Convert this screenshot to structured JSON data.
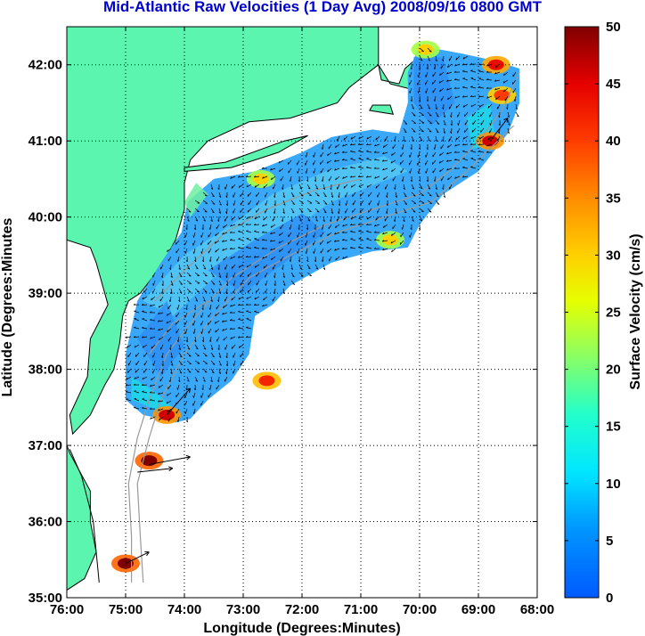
{
  "chart_data": {
    "type": "heatmap",
    "title": "Mid-Atlantic Raw Velocities (1 Day Avg) 2008/09/16 0800 GMT",
    "xlabel": "Longitude (Degrees:Minutes)",
    "ylabel": "Latitude (Degrees:Minutes",
    "xlim": [
      -76,
      -68
    ],
    "ylim": [
      35,
      42.5
    ],
    "x_ticks": [
      "76:00",
      "75:00",
      "74:00",
      "73:00",
      "72:00",
      "71:00",
      "70:00",
      "69:00",
      "68:00"
    ],
    "y_ticks": [
      "35:00",
      "36:00",
      "37:00",
      "38:00",
      "39:00",
      "40:00",
      "41:00",
      "42:00"
    ],
    "grid": true,
    "colorbar": {
      "label": "Surface Velocity (cm/s)",
      "min": 0,
      "max": 50,
      "ticks": [
        "0",
        "5",
        "10",
        "15",
        "20",
        "25",
        "30",
        "35",
        "40",
        "45",
        "50"
      ]
    },
    "colors": {
      "title": "#0000cc",
      "land": "#5cf5b0",
      "coast": "#000000",
      "bathymetry": "#999999",
      "arrows": "#000000"
    },
    "hotspots": [
      {
        "lon": -72.6,
        "lat": 37.85,
        "value": 42
      },
      {
        "lon": -74.6,
        "lat": 36.8,
        "value": 50
      },
      {
        "lon": -74.3,
        "lat": 37.4,
        "value": 46
      },
      {
        "lon": -75.0,
        "lat": 35.45,
        "value": 50
      },
      {
        "lon": -68.8,
        "lat": 41.0,
        "value": 46
      },
      {
        "lon": -68.6,
        "lat": 41.6,
        "value": 40
      },
      {
        "lon": -68.7,
        "lat": 42.0,
        "value": 44
      },
      {
        "lon": -69.9,
        "lat": 42.2,
        "value": 30
      },
      {
        "lon": -72.7,
        "lat": 40.5,
        "value": 30
      },
      {
        "lon": -70.5,
        "lat": 39.7,
        "value": 30
      }
    ]
  }
}
